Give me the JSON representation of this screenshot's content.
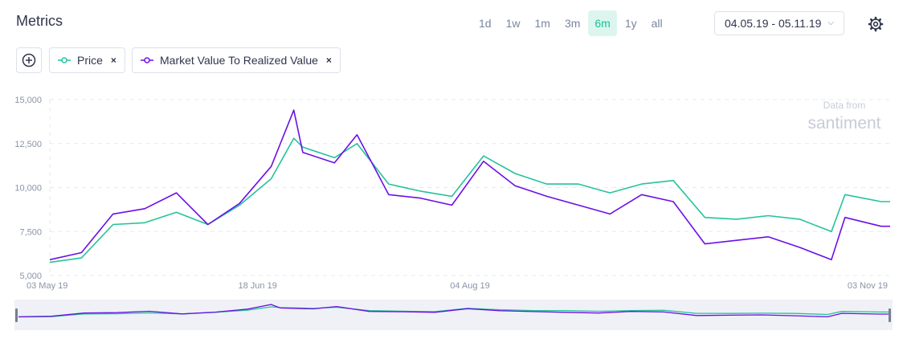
{
  "header": {
    "title": "Metrics",
    "settings_icon": "gear-icon"
  },
  "ranges": [
    {
      "label": "1d",
      "active": false
    },
    {
      "label": "1w",
      "active": false
    },
    {
      "label": "1m",
      "active": false
    },
    {
      "label": "3m",
      "active": false
    },
    {
      "label": "6m",
      "active": true
    },
    {
      "label": "1y",
      "active": false
    },
    {
      "label": "all",
      "active": false
    }
  ],
  "date_range": {
    "label": "04.05.19 - 05.11.19",
    "icon": "chevron-down-icon"
  },
  "add_metric_icon": "plus-circle-icon",
  "metrics": [
    {
      "label": "Price",
      "color": "#26c39b",
      "remove": "×"
    },
    {
      "label": "Market Value To Realized Value",
      "color": "#6b10e6",
      "remove": "×"
    }
  ],
  "watermark": {
    "line1": "Data from",
    "line2": "santiment"
  },
  "chart_data": {
    "type": "line",
    "x": [
      "2019-05-03",
      "2019-05-10",
      "2019-05-17",
      "2019-05-24",
      "2019-05-31",
      "2019-06-07",
      "2019-06-14",
      "2019-06-21",
      "2019-06-26",
      "2019-06-28",
      "2019-07-05",
      "2019-07-10",
      "2019-07-17",
      "2019-07-24",
      "2019-07-31",
      "2019-08-07",
      "2019-08-14",
      "2019-08-21",
      "2019-08-28",
      "2019-09-04",
      "2019-09-11",
      "2019-09-18",
      "2019-09-25",
      "2019-10-02",
      "2019-10-09",
      "2019-10-16",
      "2019-10-23",
      "2019-10-26",
      "2019-11-03",
      "2019-11-05"
    ],
    "series": [
      {
        "name": "Price",
        "color": "#26c39b",
        "values": [
          5750,
          6000,
          7900,
          8000,
          8600,
          7900,
          9000,
          10500,
          12800,
          12300,
          11700,
          12500,
          10200,
          9800,
          9500,
          11800,
          10800,
          10200,
          10200,
          9700,
          10200,
          10400,
          8300,
          8200,
          8400,
          8200,
          7500,
          9600,
          9200,
          9200
        ]
      },
      {
        "name": "Market Value To Realized Value",
        "color": "#6b10e6",
        "values": [
          5900,
          6300,
          8500,
          8800,
          9700,
          7900,
          9100,
          11200,
          14400,
          12000,
          11400,
          13000,
          9600,
          9400,
          9000,
          11500,
          10100,
          9500,
          9000,
          8500,
          9600,
          9200,
          6800,
          7000,
          7200,
          6600,
          5900,
          8300,
          7800,
          7800
        ]
      }
    ],
    "y_ticks": [
      "15,000",
      "12,500",
      "10,000",
      "7,500",
      "5,000"
    ],
    "y_tick_values": [
      15000,
      12500,
      10000,
      7500,
      5000
    ],
    "x_ticks": [
      {
        "label": "03 May 19",
        "date": "2019-05-03"
      },
      {
        "label": "18 Jun 19",
        "date": "2019-06-18"
      },
      {
        "label": "04 Aug 19",
        "date": "2019-08-04"
      },
      {
        "label": "03 Nov 19",
        "date": "2019-11-03"
      }
    ],
    "ylim": [
      5000,
      15000
    ],
    "xlim": [
      "2019-05-03",
      "2019-11-05"
    ],
    "grid": "horizontal dashed",
    "legend": "top-left chips"
  }
}
